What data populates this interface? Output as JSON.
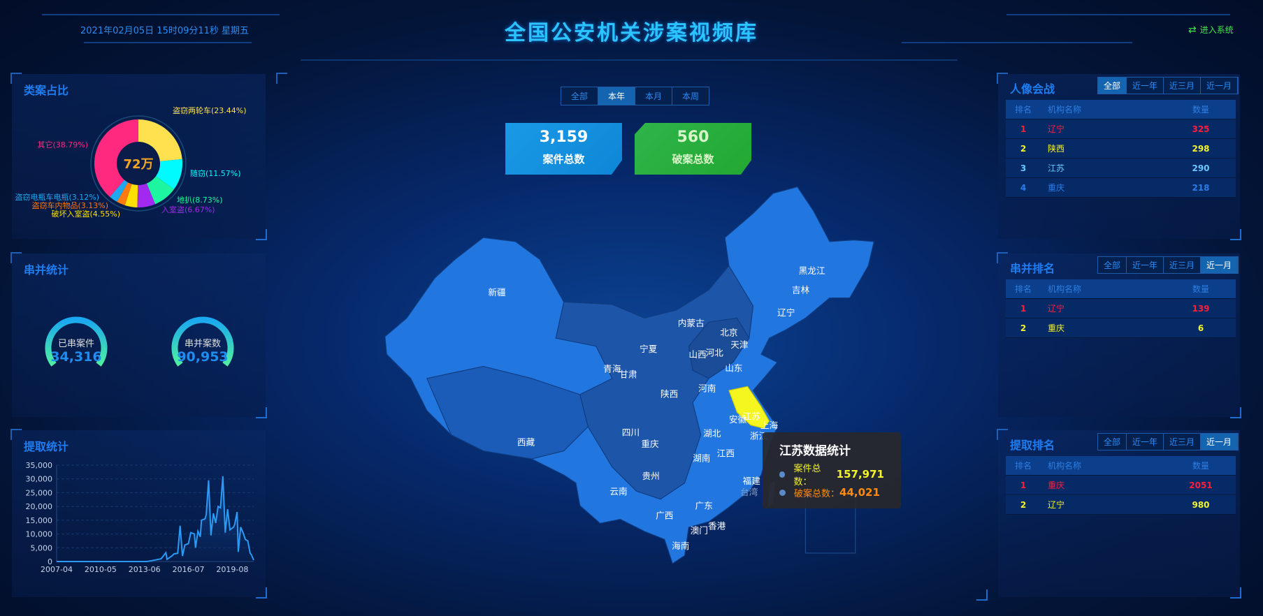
{
  "header": {
    "datetime": "2021年02月05日 15时09分11秒 星期五",
    "title": "全国公安机关涉案视频库",
    "enter_label": "进入系统",
    "enter_icon": "switch-arrows-icon"
  },
  "category_share": {
    "title": "类案占比",
    "center_label": "72万",
    "slices": [
      {
        "label": "盗窃两轮车(23.44%)",
        "value": 23.44,
        "color": "#ffe150"
      },
      {
        "label": "随窃(11.57%)",
        "value": 11.57,
        "color": "#00fbff"
      },
      {
        "label": "地扒(8.73%)",
        "value": 8.73,
        "color": "#1ef5a0"
      },
      {
        "label": "入室盗(6.67%)",
        "value": 6.67,
        "color": "#a22af0"
      },
      {
        "label": "破坏入室盗(4.55%)",
        "value": 4.55,
        "color": "#ffe000"
      },
      {
        "label": "盗窃车内物品(3.13%)",
        "value": 3.13,
        "color": "#ff7a10"
      },
      {
        "label": "盗窃电瓶车电瓶(3.12%)",
        "value": 3.12,
        "color": "#1ea8f0"
      },
      {
        "label": "其它(38.79%)",
        "value": 38.79,
        "color": "#ff2a80"
      }
    ]
  },
  "serial_stats": {
    "title": "串并统计",
    "gauges": [
      {
        "label": "已串案件",
        "value": "34,316"
      },
      {
        "label": "串并案数",
        "value": "90,953"
      }
    ]
  },
  "extraction_stats": {
    "title": "提取统计"
  },
  "chart_data": {
    "type": "area",
    "xlabel": "",
    "ylabel": "",
    "ylim": [
      0,
      35000
    ],
    "xlim": [
      "2007-04",
      "2021-02"
    ],
    "grid": true,
    "xticks": [
      "2007-04",
      "2010-05",
      "2013-06",
      "2016-07",
      "2019-08"
    ],
    "yticks": [
      "0",
      "5,000",
      "10,000",
      "15,000",
      "20,000",
      "25,000",
      "30,000",
      "35,000"
    ],
    "color": "#2a9af5",
    "points": [
      [
        "2007-04",
        0
      ],
      [
        "2013-08",
        0
      ],
      [
        "2013-12",
        300
      ],
      [
        "2014-08",
        1000
      ],
      [
        "2014-12",
        3200
      ],
      [
        "2015-01",
        800
      ],
      [
        "2015-05",
        2000
      ],
      [
        "2015-07",
        2800
      ],
      [
        "2015-10",
        3000
      ],
      [
        "2015-12",
        13000
      ],
      [
        "2016-02",
        2000
      ],
      [
        "2016-04",
        6000
      ],
      [
        "2016-07",
        6500
      ],
      [
        "2016-09",
        10500
      ],
      [
        "2016-12",
        10000
      ],
      [
        "2017-01",
        5000
      ],
      [
        "2017-03",
        11000
      ],
      [
        "2017-05",
        9000
      ],
      [
        "2017-06",
        15000
      ],
      [
        "2017-09",
        15500
      ],
      [
        "2017-10",
        17000
      ],
      [
        "2017-12",
        29500
      ],
      [
        "2018-02",
        9500
      ],
      [
        "2018-04",
        17500
      ],
      [
        "2018-06",
        14000
      ],
      [
        "2018-08",
        20000
      ],
      [
        "2018-10",
        19500
      ],
      [
        "2018-12",
        31000
      ],
      [
        "2019-02",
        10500
      ],
      [
        "2019-04",
        19000
      ],
      [
        "2019-06",
        11500
      ],
      [
        "2019-09",
        12500
      ],
      [
        "2019-10",
        13500
      ],
      [
        "2019-12",
        18000
      ],
      [
        "2020-01",
        3500
      ],
      [
        "2020-03",
        12500
      ],
      [
        "2020-05",
        10500
      ],
      [
        "2020-07",
        8000
      ],
      [
        "2020-09",
        7500
      ],
      [
        "2020-11",
        3000
      ],
      [
        "2020-12",
        2500
      ],
      [
        "2021-02",
        500
      ]
    ]
  },
  "center": {
    "tabs": [
      "全部",
      "本年",
      "本月",
      "本周"
    ],
    "active_tab": 1,
    "cases_total": {
      "value": "3,159",
      "label": "案件总数",
      "color": "#1597e0"
    },
    "solved_total": {
      "value": "560",
      "label": "破案总数",
      "color": "#26b038"
    },
    "highlight_color": "#f5f520",
    "provinces": [
      "新疆",
      "西藏",
      "青海",
      "甘肃",
      "宁夏",
      "内蒙古",
      "黑龙江",
      "吉林",
      "辽宁",
      "北京",
      "天津",
      "河北",
      "山西",
      "山东",
      "陕西",
      "河南",
      "四川",
      "重庆",
      "湖北",
      "安徽",
      "江苏",
      "上海",
      "浙江",
      "湖南",
      "江西",
      "贵州",
      "云南",
      "广西",
      "广东",
      "福建",
      "台湾",
      "澳门",
      "香港",
      "海南"
    ],
    "tooltip": {
      "title": "江苏数据统计",
      "cases_label": "案件总数：",
      "cases_value": "157,971",
      "solved_label": "破案总数：",
      "solved_value": "44,021"
    }
  },
  "rankings": [
    {
      "title": "人像会战",
      "tabs": [
        "全部",
        "近一年",
        "近三月",
        "近一月"
      ],
      "active_tab": 0,
      "headers": [
        "排名",
        "机构名称",
        "数量"
      ],
      "rows": [
        {
          "rank": "1",
          "name": "辽宁",
          "count": "325"
        },
        {
          "rank": "2",
          "name": "陕西",
          "count": "298"
        },
        {
          "rank": "3",
          "name": "江苏",
          "count": "290"
        },
        {
          "rank": "4",
          "name": "重庆",
          "count": "218"
        }
      ]
    },
    {
      "title": "串并排名",
      "tabs": [
        "全部",
        "近一年",
        "近三月",
        "近一月"
      ],
      "active_tab": 3,
      "headers": [
        "排名",
        "机构名称",
        "数量"
      ],
      "rows": [
        {
          "rank": "1",
          "name": "辽宁",
          "count": "139"
        },
        {
          "rank": "2",
          "name": "重庆",
          "count": "6"
        }
      ]
    },
    {
      "title": "提取排名",
      "tabs": [
        "全部",
        "近一年",
        "近三月",
        "近一月"
      ],
      "active_tab": 3,
      "headers": [
        "排名",
        "机构名称",
        "数量"
      ],
      "rows": [
        {
          "rank": "1",
          "name": "重庆",
          "count": "2051"
        },
        {
          "rank": "2",
          "name": "辽宁",
          "count": "980"
        }
      ]
    }
  ]
}
